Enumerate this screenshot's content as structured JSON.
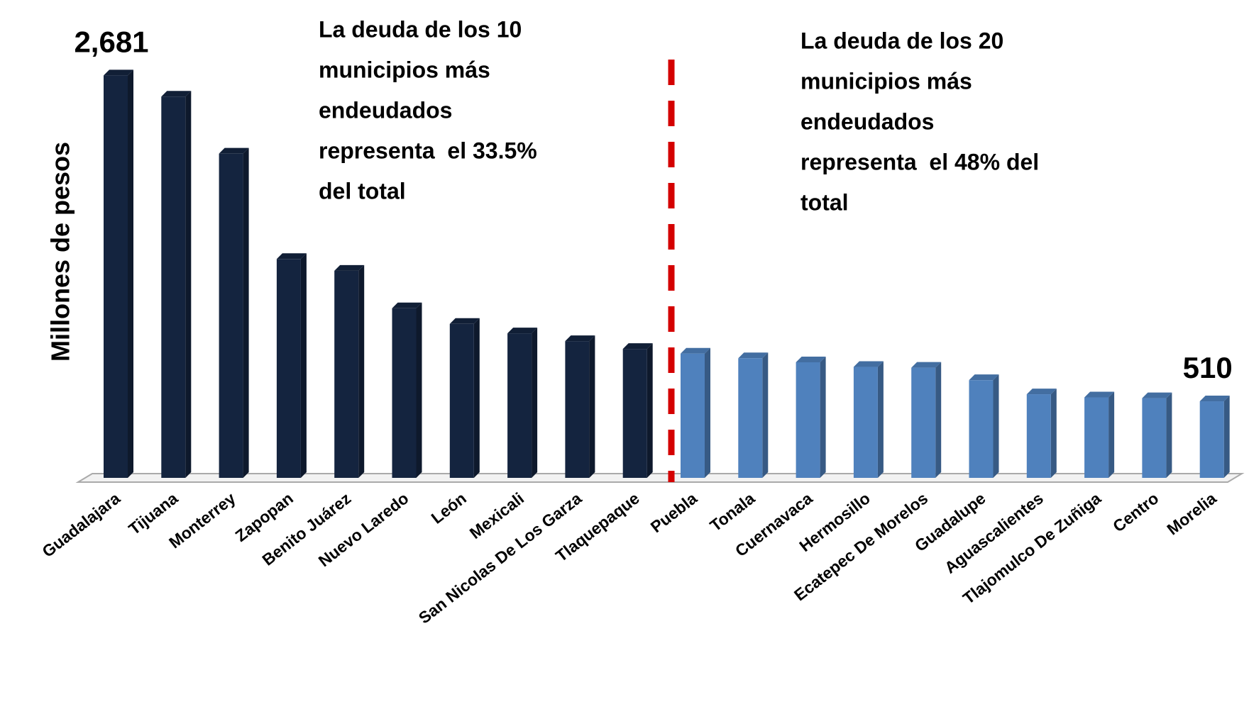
{
  "chart_data": {
    "type": "bar",
    "y_axis_label": "Millones de pesos",
    "categories": [
      "Guadalajara",
      "Tijuana",
      "Monterrey",
      "Zapopan",
      "Benito Juárez",
      "Nuevo Laredo",
      "León",
      "Mexicali",
      "San Nicolas De Los Garza",
      "Tlaquepaque",
      "Puebla",
      "Tonala",
      "Cuernavaca",
      "Hermosillo",
      "Ecatepec De Morelos",
      "Guadalupe",
      "Aguascalientes",
      "Tlajomulco De Zuñiga",
      "Centro",
      "Morelia"
    ],
    "values": [
      2681,
      2540,
      2160,
      1458,
      1380,
      1130,
      1026,
      963,
      911,
      859,
      828,
      797,
      770,
      739,
      734,
      651,
      557,
      536,
      531,
      510
    ],
    "value_labels": [
      "2,681",
      null,
      null,
      null,
      null,
      null,
      null,
      null,
      null,
      null,
      null,
      null,
      null,
      null,
      null,
      null,
      null,
      null,
      null,
      "510"
    ],
    "colors": [
      "#14243f",
      "#14243f",
      "#14243f",
      "#14243f",
      "#14243f",
      "#14243f",
      "#14243f",
      "#14243f",
      "#14243f",
      "#14243f",
      "#4f81bd",
      "#4f81bd",
      "#4f81bd",
      "#4f81bd",
      "#4f81bd",
      "#4f81bd",
      "#4f81bd",
      "#4f81bd",
      "#4f81bd",
      "#4f81bd"
    ],
    "ylim": [
      0,
      2900
    ],
    "annotations": [
      {
        "lines": [
          "La deuda de los 10",
          "municipios más",
          "endeudados",
          "representa  el 33.5%",
          "del total"
        ]
      },
      {
        "lines": [
          "La deuda de los 20",
          "municipios más",
          "endeudados",
          "representa  el 48% del",
          "total"
        ]
      }
    ]
  }
}
